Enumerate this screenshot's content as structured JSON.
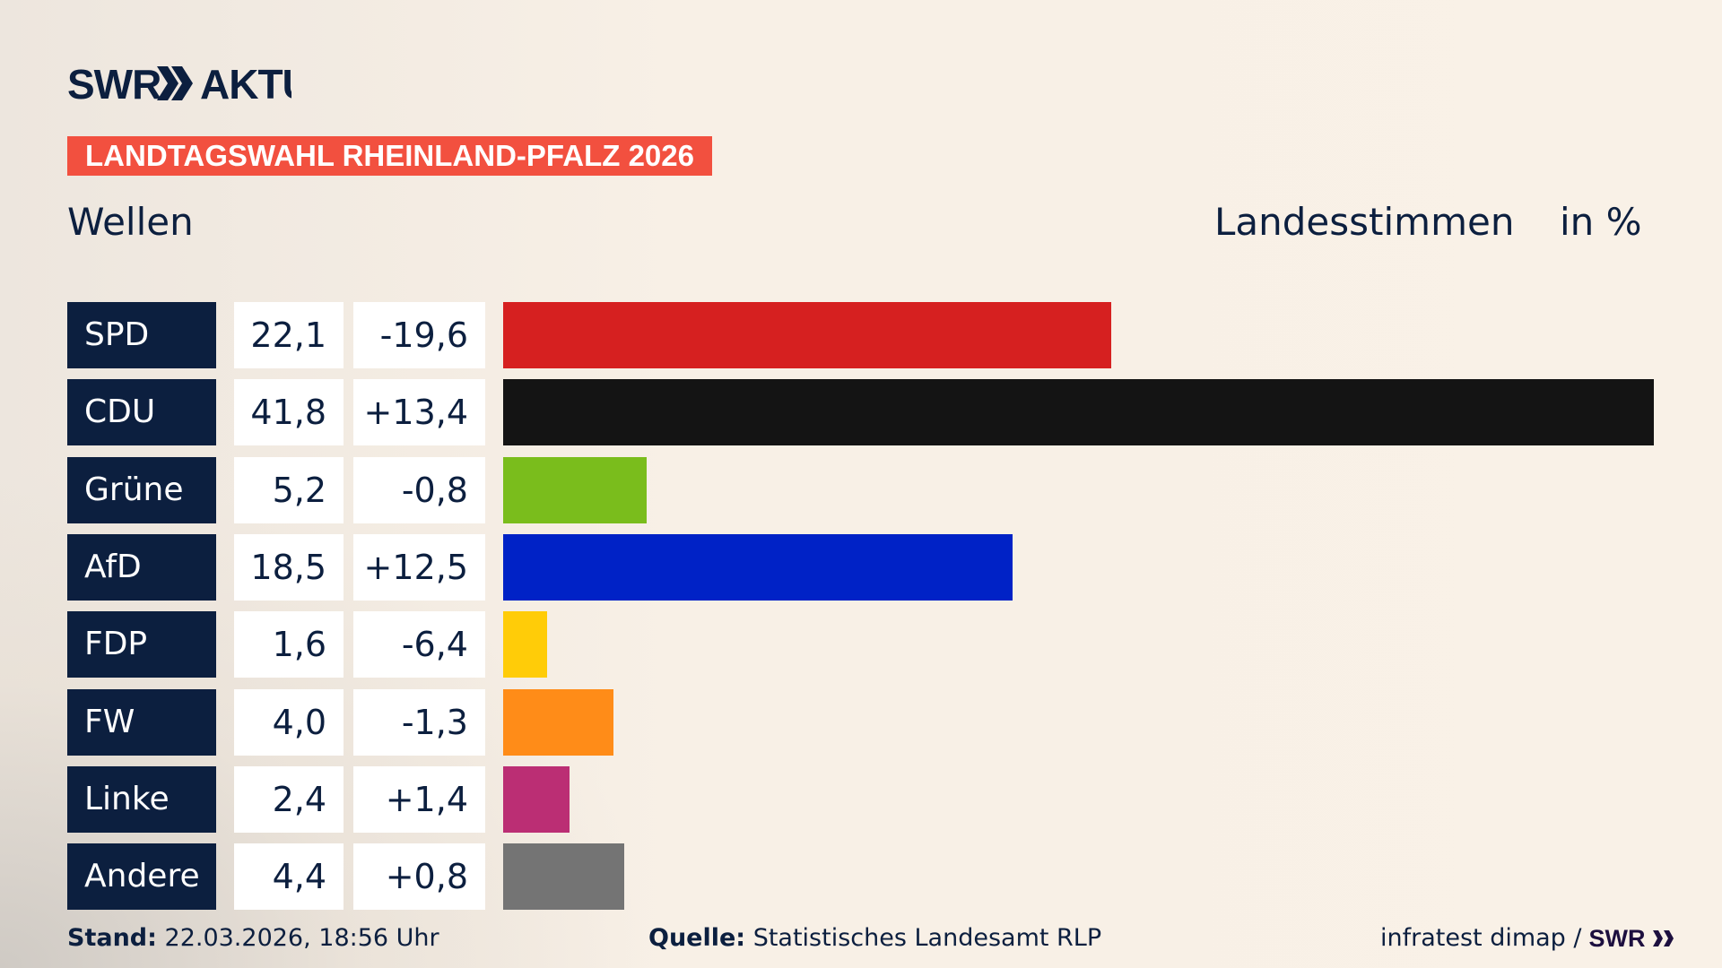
{
  "header": {
    "logo_text": "SWR AKTUELL",
    "banner": "LANDTAGSWAHL RHEINLAND-PFALZ 2026",
    "subtitle": "Wellen",
    "measure": "Landesstimmen",
    "unit": "in %"
  },
  "chart_data": {
    "type": "bar",
    "orientation": "horizontal",
    "categories": [
      "SPD",
      "CDU",
      "Grüne",
      "AfD",
      "FDP",
      "FW",
      "Linke",
      "Andere"
    ],
    "values": [
      22.1,
      41.8,
      5.2,
      18.5,
      1.6,
      4.0,
      2.4,
      4.4
    ],
    "value_labels": [
      "22,1",
      "41,8",
      "5,2",
      "18,5",
      "1,6",
      "4,0",
      "2,4",
      "4,4"
    ],
    "diff_labels": [
      "-19,6",
      "+13,4",
      "-0,8",
      "+12,5",
      "-6,4",
      "-1,3",
      "+1,4",
      "+0,8"
    ],
    "diffs": [
      -19.6,
      13.4,
      -0.8,
      12.5,
      -6.4,
      -1.3,
      1.4,
      0.8
    ],
    "colors": [
      "#d62020",
      "#141414",
      "#7abd1c",
      "#0022c6",
      "#ffcc08",
      "#ff8c18",
      "#bb2e74",
      "#747474"
    ],
    "grid": false
  },
  "footer": {
    "stand_label": "Stand:",
    "stand_value": "22.03.2026, 18:56 Uhr",
    "source_label": "Quelle:",
    "source_value": "Statistisches Landesamt RLP",
    "credit": "infratest dimap /",
    "credit_logo": "SWR"
  },
  "colors": {
    "navy": "#0c1f3f",
    "banner": "#f2503f",
    "background": "#f8f0e6"
  }
}
